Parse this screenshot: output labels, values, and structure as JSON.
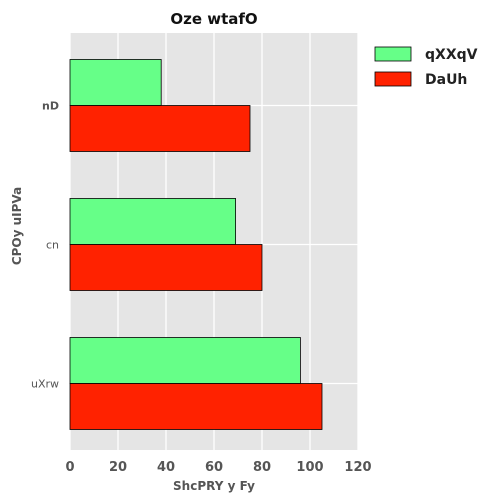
{
  "chart_data": {
    "type": "bar",
    "orientation": "horizontal",
    "title": "Oze wtafO",
    "xlabel": "ShcPRY y  Fy",
    "ylabel": "CPOy uIPVa",
    "categories": [
      "nD",
      "cn",
      "uXrw"
    ],
    "series": [
      {
        "name": "qXXqV",
        "color": "#66ff88",
        "values": [
          38,
          69,
          96
        ]
      },
      {
        "name": "DaUh",
        "color": "#ff2200",
        "values": [
          75,
          80,
          105
        ]
      }
    ],
    "xlim": [
      0,
      120
    ],
    "xticks": [
      0,
      20,
      40,
      60,
      80,
      100,
      120
    ],
    "grid": true,
    "background": "#e5e5e5",
    "legend_position": "top-right-outside"
  }
}
